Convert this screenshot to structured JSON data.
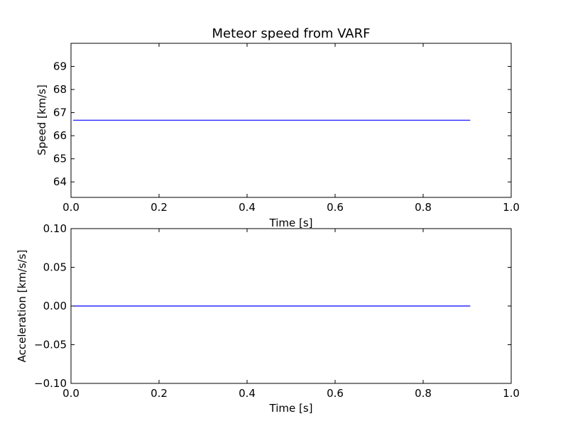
{
  "chart_data": [
    {
      "type": "line",
      "title": "Meteor speed from  VARF",
      "xlabel": "Time [s]",
      "ylabel": "Speed [km/s]",
      "xlim": [
        0.0,
        1.0
      ],
      "ylim": [
        63.33,
        70.0
      ],
      "xticks": [
        0.0,
        0.2,
        0.4,
        0.6,
        0.8,
        1.0
      ],
      "xtick_labels": [
        "0.0",
        "0.2",
        "0.4",
        "0.6",
        "0.8",
        "1.0"
      ],
      "yticks": [
        64,
        65,
        66,
        67,
        68,
        69
      ],
      "ytick_labels": [
        "64",
        "65",
        "66",
        "67",
        "68",
        "69"
      ],
      "grid": false,
      "series": [
        {
          "x": [
            0.005,
            0.907
          ],
          "y": [
            66.67,
            66.67
          ],
          "color": "#0000ff"
        }
      ]
    },
    {
      "type": "line",
      "title": "",
      "xlabel": "Time [s]",
      "ylabel": "Acceleration [km/s/s]",
      "xlim": [
        0.0,
        1.0
      ],
      "ylim": [
        -0.1,
        0.1
      ],
      "xticks": [
        0.0,
        0.2,
        0.4,
        0.6,
        0.8,
        1.0
      ],
      "xtick_labels": [
        "0.0",
        "0.2",
        "0.4",
        "0.6",
        "0.8",
        "1.0"
      ],
      "yticks": [
        -0.1,
        -0.05,
        0.0,
        0.05,
        0.1
      ],
      "ytick_labels": [
        "−0.10",
        "−0.05",
        "0.00",
        "0.05",
        "0.10"
      ],
      "grid": false,
      "series": [
        {
          "x": [
            0.005,
            0.907
          ],
          "y": [
            0.0,
            0.0
          ],
          "color": "#0000ff"
        }
      ]
    }
  ]
}
